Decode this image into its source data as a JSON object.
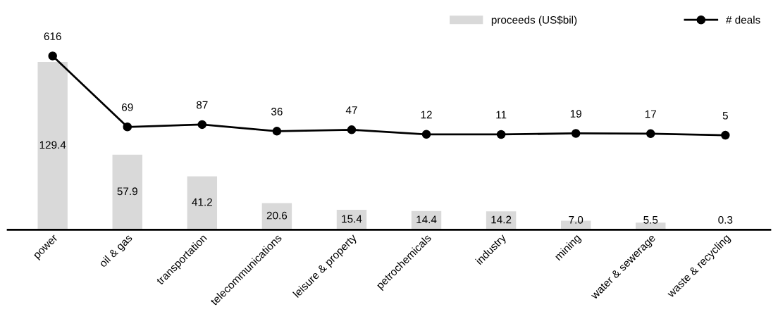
{
  "chart_data": {
    "type": "bar",
    "categories": [
      "power",
      "oil & gas",
      "transportation",
      "telecommunications",
      "leisure & property",
      "petrochemicals",
      "industry",
      "mining",
      "water & sewerage",
      "waste & recycling"
    ],
    "series": [
      {
        "name": "proceeds (US$bil)",
        "color": "#d9d9d9",
        "values": [
          129.4,
          57.9,
          41.2,
          20.6,
          15.4,
          14.4,
          14.2,
          7.0,
          5.5,
          0.3
        ],
        "value_labels": [
          "129.4",
          "57.9",
          "41.2",
          "20.6",
          "15.4",
          "14.4",
          "14.2",
          "7.0",
          "5.5",
          "0.3"
        ]
      },
      {
        "name": "# deals",
        "type": "line",
        "axis": "y2",
        "color": "#000000",
        "values": [
          616,
          69,
          87,
          36,
          47,
          12,
          11,
          19,
          17,
          5
        ]
      }
    ],
    "data_labels": true,
    "legend": "top right",
    "marker": "circle",
    "line_style": "solid",
    "grid": false,
    "tick_labels": "x"
  }
}
